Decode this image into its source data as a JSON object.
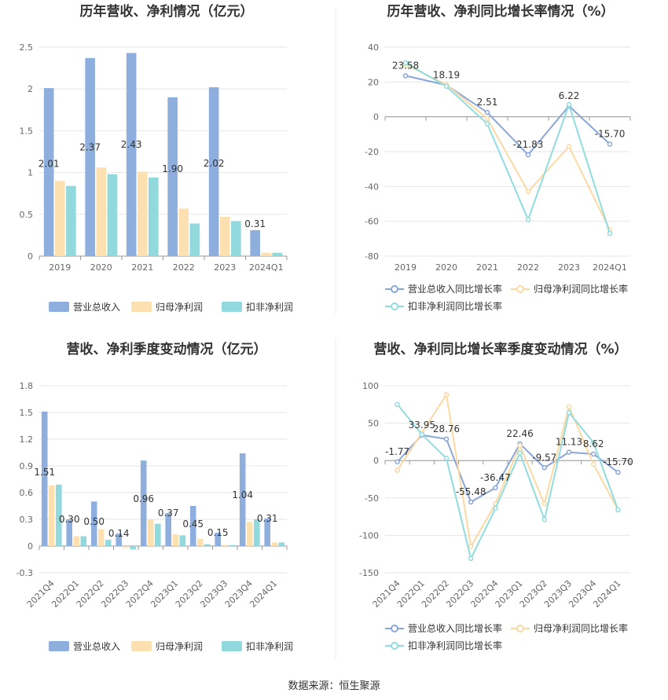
{
  "source_label": "数据来源：恒生聚源",
  "colors": {
    "revenue": "#8eaedd",
    "net_profit": "#fde0b0",
    "deducted_profit": "#92d9dd",
    "revenue_line": "#8aa6d8",
    "net_profit_line": "#fcd9a2",
    "deducted_line": "#90dcdf",
    "grid": "#e6e6e6",
    "axis": "#999999"
  },
  "chart_data": [
    {
      "type": "bar",
      "title": "历年营收、净利情况（亿元）",
      "categories": [
        "2019",
        "2020",
        "2021",
        "2022",
        "2023",
        "2024Q1"
      ],
      "ylim": [
        0,
        2.5
      ],
      "yticks": [
        "0",
        "0.5",
        "1",
        "1.5",
        "2",
        "2.5"
      ],
      "series": [
        {
          "name": "营业总收入",
          "values": [
            2.01,
            2.37,
            2.43,
            1.9,
            2.02,
            0.31
          ]
        },
        {
          "name": "归母净利润",
          "values": [
            0.9,
            1.06,
            1.01,
            0.57,
            0.47,
            0.04
          ]
        },
        {
          "name": "扣非净利润",
          "values": [
            0.84,
            0.98,
            0.94,
            0.39,
            0.42,
            0.04
          ]
        }
      ],
      "data_labels": [
        "2.01",
        "2.37",
        "2.43",
        "1.90",
        "2.02",
        "0.31"
      ],
      "legend": "bottom"
    },
    {
      "type": "line",
      "title": "历年营收、净利同比增长率情况（%）",
      "categories": [
        "2019",
        "2020",
        "2021",
        "2022",
        "2023",
        "2024Q1"
      ],
      "ylim": [
        -80,
        40
      ],
      "yticks": [
        "-80",
        "-60",
        "-40",
        "-20",
        "0",
        "20",
        "40"
      ],
      "series": [
        {
          "name": "营业总收入同比增长率",
          "values": [
            23.58,
            18.19,
            2.51,
            -21.83,
            6.22,
            -15.7
          ]
        },
        {
          "name": "归母净利润同比增长率",
          "values": [
            30,
            18.5,
            -1,
            -43,
            -17,
            -65
          ]
        },
        {
          "name": "扣非净利润同比增长率",
          "values": [
            31,
            17.5,
            -4,
            -59,
            7,
            -67
          ]
        }
      ],
      "data_labels": [
        "23.58",
        "18.19",
        "2.51",
        "-21.83",
        "6.22",
        "-15.70"
      ],
      "legend": "bottom"
    },
    {
      "type": "bar",
      "title": "营收、净利季度变动情况（亿元）",
      "categories": [
        "2021Q4",
        "2022Q1",
        "2022Q2",
        "2022Q3",
        "2022Q4",
        "2023Q1",
        "2023Q2",
        "2023Q3",
        "2023Q4",
        "2024Q1"
      ],
      "ylim": [
        -0.3,
        1.8
      ],
      "yticks": [
        "-0.3",
        "0",
        "0.3",
        "0.6",
        "0.9",
        "1.2",
        "1.5",
        "1.8"
      ],
      "series": [
        {
          "name": "营业总收入",
          "values": [
            1.51,
            0.3,
            0.5,
            0.14,
            0.96,
            0.37,
            0.45,
            0.15,
            1.04,
            0.31
          ]
        },
        {
          "name": "归母净利润",
          "values": [
            0.68,
            0.11,
            0.19,
            -0.02,
            0.3,
            0.13,
            0.08,
            0.01,
            0.27,
            0.04
          ]
        },
        {
          "name": "扣非净利润",
          "values": [
            0.69,
            0.11,
            0.07,
            -0.04,
            0.25,
            0.12,
            0.02,
            0.01,
            0.3,
            0.04
          ]
        }
      ],
      "data_labels": [
        "1.51",
        "0.30",
        "0.50",
        "0.14",
        "0.96",
        "0.37",
        "0.45",
        "0.15",
        "1.04",
        "0.31"
      ],
      "legend": "bottom"
    },
    {
      "type": "line",
      "title": "营收、净利同比增长率季度变动情况（%）",
      "categories": [
        "2021Q4",
        "2022Q1",
        "2022Q2",
        "2022Q3",
        "2022Q4",
        "2023Q1",
        "2023Q2",
        "2023Q3",
        "2023Q4",
        "2024Q1"
      ],
      "ylim": [
        -150,
        100
      ],
      "yticks": [
        "-150",
        "-100",
        "-50",
        "0",
        "50",
        "100"
      ],
      "series": [
        {
          "name": "营业总收入同比增长率",
          "values": [
            -1.77,
            33.95,
            28.76,
            -55.48,
            -36.47,
            22.46,
            -9.57,
            11.13,
            8.62,
            -15.7
          ]
        },
        {
          "name": "归母净利润同比增长率",
          "values": [
            -13,
            37,
            88,
            -115,
            -58,
            20,
            -58,
            72,
            -5,
            -66
          ]
        },
        {
          "name": "扣非净利润同比增长率",
          "values": [
            75,
            35,
            3,
            -131,
            -64,
            10,
            -79,
            64,
            24,
            -66
          ]
        }
      ],
      "data_labels": [
        "-1.77",
        "33.95",
        "28.76",
        "-55.48",
        "-36.47",
        "22.46",
        "-9.57",
        "11.13",
        "8.62",
        "-15.70"
      ],
      "legend": "bottom"
    }
  ]
}
